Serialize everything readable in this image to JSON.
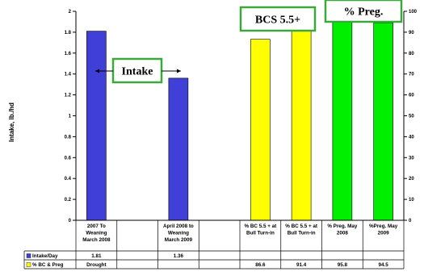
{
  "chart_data": {
    "type": "bar",
    "ylabel": "Intake, lb./hd",
    "y_left": {
      "ticks": [
        "0",
        "0.2",
        "0.4",
        "0.6",
        "0.8",
        "1",
        "1.2",
        "1.4",
        "1.6",
        "1.8",
        "2"
      ],
      "ylim": [
        0,
        2
      ]
    },
    "y_right": {
      "ticks": [
        "0",
        "10",
        "20",
        "30",
        "40",
        "50",
        "60",
        "70",
        "80",
        "90",
        "100"
      ],
      "ylim": [
        0,
        100
      ]
    },
    "categories": [
      [
        "2007 To",
        "Weaning",
        "March 2008"
      ],
      [],
      [
        "April 2008 to",
        "Weaning",
        "March 2009"
      ],
      [],
      [
        "% BC 5.5 + at",
        "Bull Turn-in"
      ],
      [
        "% BC 5.5 + at",
        "Bull Turn-in"
      ],
      [
        "% Preg. May",
        "2008"
      ],
      [
        "%Preg. May",
        "2009"
      ]
    ],
    "series": [
      {
        "name": "Intake/Day",
        "color": "#4040d8",
        "axis": "left",
        "values": [
          1.81,
          null,
          1.36,
          null,
          null,
          null,
          null,
          null
        ],
        "table_values": [
          "1.81",
          "",
          "1.36",
          "",
          "",
          "",
          "",
          ""
        ]
      },
      {
        "name": "% BC & Preg",
        "axis": "right",
        "colors": [
          "#ffff00",
          "#ffff00",
          "#00ee00",
          "#00ee00"
        ],
        "values": [
          null,
          null,
          null,
          null,
          86.6,
          91.4,
          95.8,
          94.5
        ],
        "table_values": [
          "Drought",
          "",
          "",
          "",
          "86.6",
          "91.4",
          "95.8",
          "94.5"
        ]
      }
    ],
    "annotations": [
      "Intake",
      "BCS 5.5+",
      "% Preg."
    ],
    "grid": false,
    "legend": "data-table"
  }
}
